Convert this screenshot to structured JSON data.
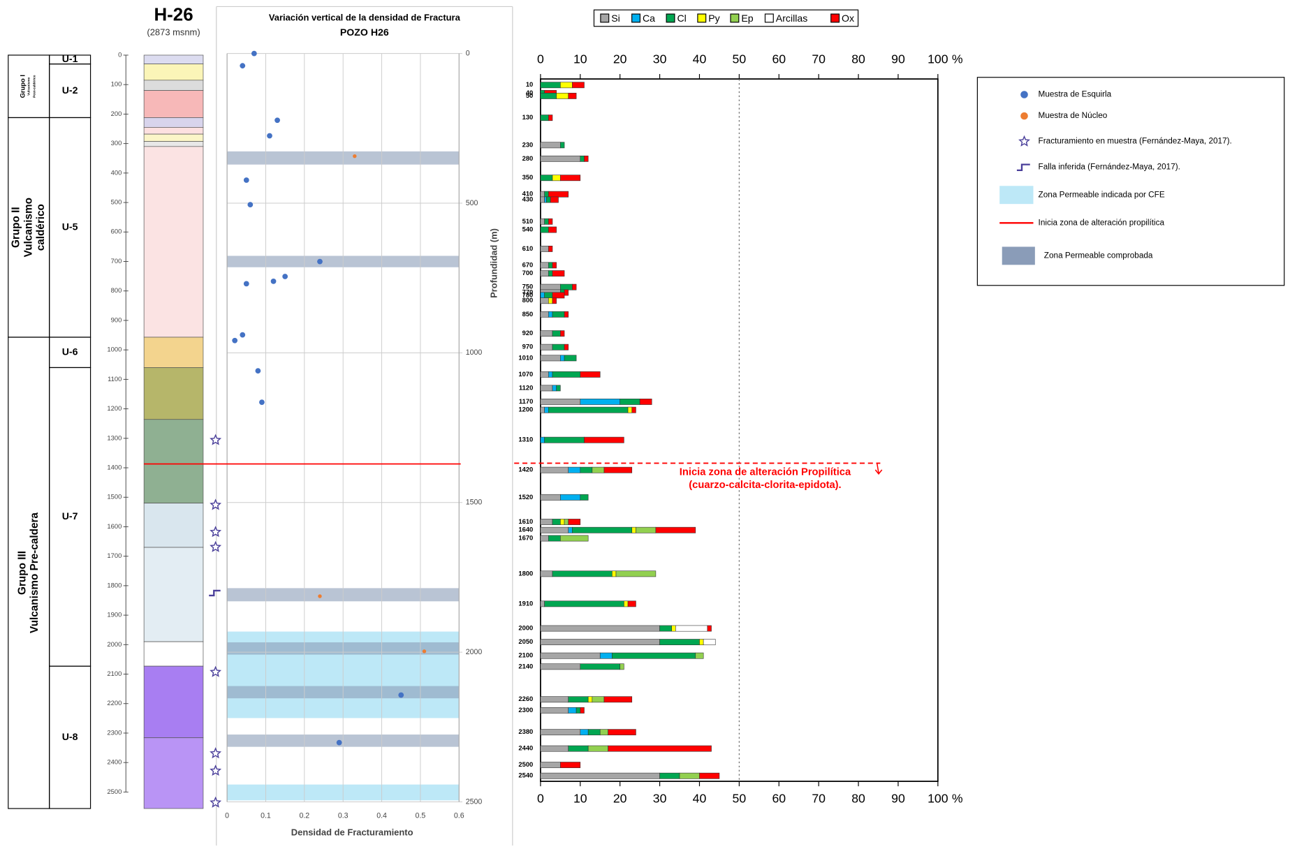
{
  "well": {
    "title": "H-26",
    "subtitle": "(2873 msnm)"
  },
  "stratigraphy": {
    "ylim": [
      0,
      2500
    ],
    "yticks": [
      0,
      100,
      200,
      300,
      400,
      500,
      600,
      700,
      800,
      900,
      1000,
      1100,
      1200,
      1300,
      1400,
      1500,
      1600,
      1700,
      1800,
      1900,
      2000,
      2100,
      2200,
      2300,
      2400,
      2500
    ],
    "groups": [
      {
        "lines": [
          "Grupo I",
          "Vulcanismo",
          "Post-caldérico"
        ],
        "top": 0,
        "bottom": 212
      },
      {
        "lines": [
          "Grupo II",
          "Vulcanismo",
          "caldérico"
        ],
        "top": 212,
        "bottom": 957
      },
      {
        "lines": [
          "Grupo III",
          "Vulcanismo Pre-caldera"
        ],
        "top": 957,
        "bottom": 2556
      }
    ],
    "units": [
      {
        "name": "U-1",
        "top": 0,
        "bottom": 30
      },
      {
        "name": "U-2",
        "top": 30,
        "bottom": 212
      },
      {
        "name": "U-5",
        "top": 212,
        "bottom": 957
      },
      {
        "name": "U-6",
        "top": 957,
        "bottom": 1060
      },
      {
        "name": "U-7",
        "top": 1060,
        "bottom": 2073
      },
      {
        "name": "U-8",
        "top": 2073,
        "bottom": 2556
      }
    ],
    "layers": [
      {
        "top": 0,
        "bottom": 30,
        "color": "#dcdcf0"
      },
      {
        "top": 30,
        "bottom": 85,
        "color": "#fbf5b8"
      },
      {
        "top": 85,
        "bottom": 120,
        "color": "#dcdcdc"
      },
      {
        "top": 120,
        "bottom": 212,
        "color": "#f7b8b8"
      },
      {
        "top": 212,
        "bottom": 245,
        "color": "#d8d4ec"
      },
      {
        "top": 245,
        "bottom": 268,
        "color": "#fde0e0"
      },
      {
        "top": 268,
        "bottom": 293,
        "color": "#fbf5c8"
      },
      {
        "top": 293,
        "bottom": 310,
        "color": "#e8e8e8"
      },
      {
        "top": 310,
        "bottom": 957,
        "color": "#fbe3e3"
      },
      {
        "top": 957,
        "bottom": 1060,
        "color": "#f3d48e"
      },
      {
        "top": 1060,
        "bottom": 1236,
        "color": "#b6b66a"
      },
      {
        "top": 1236,
        "bottom": 1520,
        "color": "#8fb092"
      },
      {
        "top": 1520,
        "bottom": 1670,
        "color": "#d9e6ee"
      },
      {
        "top": 1670,
        "bottom": 1990,
        "color": "#e3edf3"
      },
      {
        "top": 1990,
        "bottom": 2073,
        "color": "#ffffff"
      },
      {
        "top": 2073,
        "bottom": 2316,
        "color": "#a87ef2"
      },
      {
        "top": 2316,
        "bottom": 2556,
        "color": "#b994f5"
      }
    ],
    "fracture_samples": {
      "name": "Fracturamiento en muestra (Fernández-Maya, 2017).",
      "color": "#4a3f9a",
      "depths": [
        1306,
        1526,
        1618,
        1669,
        2093,
        2369,
        2428,
        2536
      ]
    },
    "faults": {
      "name": "Falla inferida (Fernández-Maya, 2017).",
      "color": "#4a3f9a",
      "depths": [
        1825
      ]
    }
  },
  "chart_data": [
    {
      "type": "scatter",
      "title": "Variación vertical de la densidad de Fractura",
      "subtitle": "POZO H26",
      "xlabel": "Densidad de Fracturamiento",
      "ylabel": "Profundidad (m)",
      "xlim": [
        0,
        0.6
      ],
      "xticks": [
        0,
        0.1,
        0.2,
        0.3,
        0.4,
        0.5,
        0.6
      ],
      "ylim": [
        0,
        2500
      ],
      "yticks": [
        0,
        500,
        1000,
        1500,
        2000,
        2500
      ],
      "grid": true,
      "series": [
        {
          "name": "Muestra de Esquirla",
          "color": "#4472c4",
          "x": [
            0.07,
            0.04,
            0.13,
            0.11,
            0.05,
            0.06,
            0.24,
            0.15,
            0.12,
            0.05,
            0.04,
            0.02,
            0.08,
            0.09,
            0.45,
            0.29
          ],
          "values": [
            0,
            41,
            223,
            275,
            423,
            505,
            695,
            745,
            761,
            769,
            940,
            959,
            1060,
            1165,
            2143,
            2302
          ]
        },
        {
          "name": "Muestra de Núcleo",
          "color": "#ed7d31",
          "x": [
            0.33,
            0.24,
            0.51
          ],
          "values": [
            343,
            1813,
            1997
          ]
        }
      ],
      "bands": [
        {
          "name": "Zona Permeable indicada por CFE",
          "color": "#bde8f7",
          "ranges": [
            [
              1931,
              2220
            ],
            [
              2442,
              2495
            ]
          ]
        },
        {
          "name": "Zona Permeable comprobada",
          "color": "#8a9cb8",
          "ranges": [
            [
              327,
              371
            ],
            [
              676,
              714
            ],
            [
              1786,
              1830
            ],
            [
              1967,
              2008
            ],
            [
              2113,
              2154
            ],
            [
              2275,
              2316
            ]
          ]
        }
      ],
      "alteration": {
        "name": "Inicia zona de alteración propilítica",
        "color": "#ff0000",
        "depth": 1371
      }
    },
    {
      "type": "bar",
      "orientation": "horizontal",
      "stacked": true,
      "xlim": [
        0,
        100
      ],
      "xticks": [
        0,
        10,
        20,
        30,
        40,
        50,
        60,
        70,
        80,
        90,
        100
      ],
      "x_unit": "%",
      "reference_x": 50,
      "ylim": [
        0,
        2560
      ],
      "y": [
        10,
        40,
        50,
        130,
        230,
        280,
        350,
        410,
        430,
        510,
        540,
        610,
        670,
        700,
        750,
        770,
        780,
        800,
        850,
        920,
        970,
        1010,
        1070,
        1120,
        1170,
        1200,
        1310,
        1420,
        1520,
        1610,
        1640,
        1670,
        1800,
        1910,
        2000,
        2050,
        2100,
        2140,
        2260,
        2300,
        2380,
        2440,
        2500,
        2540
      ],
      "series": [
        {
          "name": "Si",
          "color": "#a6a6a6",
          "values": [
            0,
            0,
            0,
            0,
            5,
            10,
            0,
            1,
            1,
            1,
            0,
            2,
            2,
            2,
            5,
            5,
            0,
            2,
            2,
            3,
            3,
            5,
            2,
            3,
            10,
            1,
            0,
            7,
            5,
            3,
            7,
            2,
            3,
            1,
            30,
            30,
            15,
            10,
            7,
            7,
            10,
            7,
            5,
            30
          ]
        },
        {
          "name": "Ca",
          "color": "#00b0f0",
          "values": [
            0,
            0,
            0,
            0,
            0,
            0,
            0,
            0,
            0.5,
            0,
            0,
            0,
            0,
            0,
            0,
            0,
            1,
            0,
            1,
            0,
            0,
            1,
            1,
            1,
            10,
            1,
            1,
            3,
            5,
            0,
            1,
            0,
            0,
            0,
            0,
            0,
            3,
            0,
            0,
            2,
            2,
            0,
            0,
            0
          ]
        },
        {
          "name": "Cl",
          "color": "#00a651",
          "values": [
            5,
            1,
            4,
            2,
            1,
            1,
            3,
            1,
            1,
            1,
            2,
            0,
            1,
            1,
            3,
            1,
            2,
            0,
            3,
            2,
            3,
            3,
            7,
            1,
            5,
            20,
            10,
            3,
            2,
            2,
            15,
            3,
            15,
            20,
            3,
            10,
            21,
            10,
            5,
            1,
            3,
            5,
            0,
            5
          ]
        },
        {
          "name": "Py",
          "color": "#ffff00",
          "values": [
            3,
            0,
            3,
            0,
            0,
            0,
            2,
            0,
            0,
            0,
            0,
            0,
            0,
            0,
            0,
            0,
            0,
            1,
            0,
            0,
            0,
            0,
            0,
            0,
            0,
            1,
            0,
            0,
            0,
            1,
            1,
            0,
            1,
            1,
            1,
            1,
            0,
            0,
            1,
            0,
            0,
            0,
            0,
            0
          ]
        },
        {
          "name": "Ep",
          "color": "#92d050",
          "values": [
            0,
            0,
            0,
            0,
            0,
            0,
            0,
            0,
            0,
            0,
            0,
            0,
            0,
            0,
            0,
            0,
            0,
            0,
            0,
            0,
            0,
            0,
            0,
            0,
            0,
            0,
            0,
            3,
            0,
            1,
            5,
            7,
            10,
            0,
            0,
            0,
            2,
            1,
            3,
            0,
            2,
            5,
            0,
            5
          ]
        },
        {
          "name": "Arcillas",
          "color": "#ffffff",
          "values": [
            0,
            0,
            0,
            0,
            0,
            0,
            0,
            0,
            0,
            0,
            0,
            0,
            0,
            0,
            0,
            0,
            0,
            0,
            0,
            0,
            0,
            0,
            0,
            0,
            0,
            0,
            0,
            0,
            0,
            0,
            0,
            0,
            0,
            0,
            8,
            3,
            0,
            0,
            0,
            0,
            0,
            0,
            0,
            0
          ]
        },
        {
          "name": "Ox",
          "color": "#ff0000",
          "values": [
            3,
            3,
            2,
            1,
            0,
            1,
            5,
            5,
            2,
            1,
            2,
            1,
            1,
            3,
            1,
            1,
            3,
            1,
            1,
            1,
            1,
            0,
            5,
            0,
            3,
            1,
            10,
            7,
            0,
            3,
            10,
            0,
            0,
            2,
            1,
            0,
            0,
            0,
            7,
            1,
            7,
            26,
            5,
            5
          ]
        }
      ],
      "annotation": {
        "lines": [
          "Inicia zona de alteración Propilítica",
          "(cuarzo-calcita-clorita-epidota)."
        ],
        "depth": 1395,
        "color": "#ff0000"
      }
    }
  ]
}
